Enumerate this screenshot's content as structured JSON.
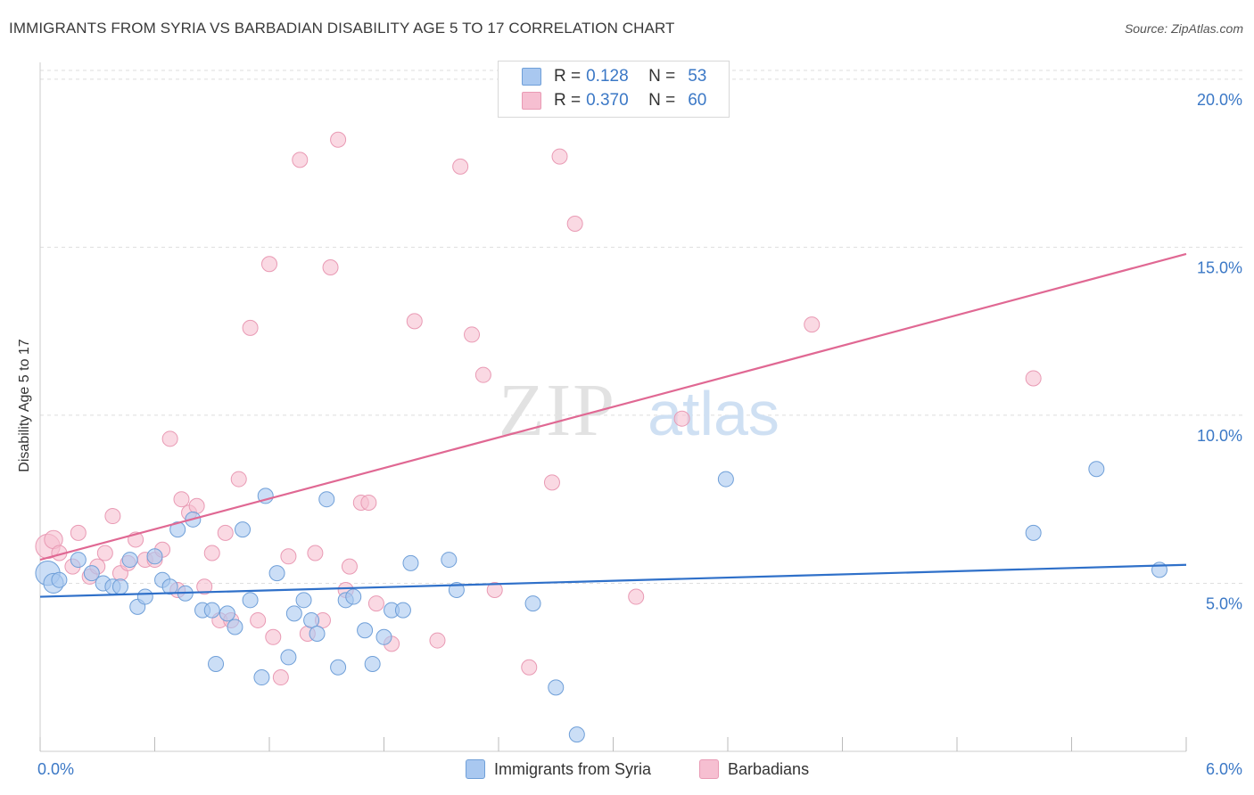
{
  "header": {
    "title": "IMMIGRANTS FROM SYRIA VS BARBADIAN DISABILITY AGE 5 TO 17 CORRELATION CHART",
    "source": "Source: ZipAtlas.com"
  },
  "legend": {
    "rows": [
      {
        "r_label": "R =",
        "r_value": "0.128",
        "n_label": "N =",
        "n_value": "53"
      },
      {
        "r_label": "R =",
        "r_value": "0.370",
        "n_label": "N =",
        "n_value": "60"
      }
    ],
    "bottom": [
      {
        "label": "Immigrants from Syria"
      },
      {
        "label": "Barbadians"
      }
    ]
  },
  "colors": {
    "blue_fill": "#a9c8f0",
    "blue_stroke": "#6f9fd8",
    "blue_line": "#2f70c9",
    "pink_fill": "#f6bfd1",
    "pink_stroke": "#e99ab4",
    "pink_line": "#e06893",
    "tick_label": "#3b78c6",
    "grid": "#dedede"
  },
  "watermark": {
    "zip": "ZIP",
    "atlas": "atlas"
  },
  "chart_data": {
    "type": "scatter",
    "title": "IMMIGRANTS FROM SYRIA VS BARBADIAN DISABILITY AGE 5 TO 17 CORRELATION CHART",
    "xlabel": "",
    "ylabel": "Disability Age 5 to 17",
    "xlim": [
      0,
      6.0
    ],
    "ylim": [
      0,
      20.5
    ],
    "x_tick_labels": [
      "0.0%",
      "6.0%"
    ],
    "y_ticks": [
      5,
      10,
      15,
      20
    ],
    "y_tick_labels": [
      "5.0%",
      "10.0%",
      "15.0%",
      "20.0%"
    ],
    "grid": true,
    "series": [
      {
        "name": "Immigrants from Syria",
        "trend": {
          "x0": 0.0,
          "y0": 4.6,
          "x1": 6.0,
          "y1": 5.55
        },
        "points": [
          [
            0.04,
            5.3,
            1.6
          ],
          [
            0.07,
            5.0,
            1.3
          ],
          [
            0.1,
            5.1,
            1
          ],
          [
            0.2,
            5.7,
            1
          ],
          [
            0.27,
            5.3,
            1
          ],
          [
            0.33,
            5.0,
            1
          ],
          [
            0.38,
            4.9,
            1
          ],
          [
            0.42,
            4.9,
            1
          ],
          [
            0.47,
            5.7,
            1
          ],
          [
            0.51,
            4.3,
            1
          ],
          [
            0.55,
            4.6,
            1
          ],
          [
            0.6,
            5.8,
            1
          ],
          [
            0.64,
            5.1,
            1
          ],
          [
            0.68,
            4.9,
            1
          ],
          [
            0.72,
            6.6,
            1
          ],
          [
            0.76,
            4.7,
            1
          ],
          [
            0.8,
            6.9,
            1
          ],
          [
            0.85,
            4.2,
            1
          ],
          [
            0.9,
            4.2,
            1
          ],
          [
            0.92,
            2.6,
            1
          ],
          [
            0.98,
            4.1,
            1
          ],
          [
            1.02,
            3.7,
            1
          ],
          [
            1.06,
            6.6,
            1
          ],
          [
            1.1,
            4.5,
            1
          ],
          [
            1.16,
            2.2,
            1
          ],
          [
            1.18,
            7.6,
            1
          ],
          [
            1.24,
            5.3,
            1
          ],
          [
            1.3,
            2.8,
            1
          ],
          [
            1.33,
            4.1,
            1
          ],
          [
            1.38,
            4.5,
            1
          ],
          [
            1.42,
            3.9,
            1
          ],
          [
            1.45,
            3.5,
            1
          ],
          [
            1.5,
            7.5,
            1
          ],
          [
            1.56,
            2.5,
            1
          ],
          [
            1.6,
            4.5,
            1
          ],
          [
            1.64,
            4.6,
            1
          ],
          [
            1.7,
            3.6,
            1
          ],
          [
            1.74,
            2.6,
            1
          ],
          [
            1.8,
            3.4,
            1
          ],
          [
            1.84,
            4.2,
            1
          ],
          [
            1.9,
            4.2,
            1
          ],
          [
            1.94,
            5.6,
            1
          ],
          [
            2.14,
            5.7,
            1
          ],
          [
            2.18,
            4.8,
            1
          ],
          [
            2.58,
            4.4,
            1
          ],
          [
            2.7,
            1.9,
            1
          ],
          [
            2.81,
            0.5,
            1
          ],
          [
            3.59,
            8.1,
            1
          ],
          [
            5.2,
            6.5,
            1
          ],
          [
            5.53,
            8.4,
            1
          ],
          [
            5.86,
            5.4,
            1
          ]
        ]
      },
      {
        "name": "Barbadians",
        "trend": {
          "x0": 0.0,
          "y0": 5.7,
          "x1": 6.0,
          "y1": 14.8
        },
        "points": [
          [
            0.04,
            6.1,
            1.6
          ],
          [
            0.07,
            6.3,
            1.2
          ],
          [
            0.1,
            5.9,
            1
          ],
          [
            0.17,
            5.5,
            1
          ],
          [
            0.2,
            6.5,
            1
          ],
          [
            0.26,
            5.2,
            1
          ],
          [
            0.3,
            5.5,
            1
          ],
          [
            0.34,
            5.9,
            1
          ],
          [
            0.38,
            7.0,
            1
          ],
          [
            0.42,
            5.3,
            1
          ],
          [
            0.46,
            5.6,
            1
          ],
          [
            0.5,
            6.3,
            1
          ],
          [
            0.55,
            5.7,
            1
          ],
          [
            0.6,
            5.7,
            1
          ],
          [
            0.64,
            6.0,
            1
          ],
          [
            0.68,
            9.3,
            1
          ],
          [
            0.72,
            4.8,
            1
          ],
          [
            0.74,
            7.5,
            1
          ],
          [
            0.78,
            7.1,
            1
          ],
          [
            0.82,
            7.3,
            1
          ],
          [
            0.86,
            4.9,
            1
          ],
          [
            0.9,
            5.9,
            1
          ],
          [
            0.94,
            3.9,
            1
          ],
          [
            0.97,
            6.5,
            1
          ],
          [
            1.0,
            3.9,
            1
          ],
          [
            1.04,
            8.1,
            1
          ],
          [
            1.1,
            12.6,
            1
          ],
          [
            1.14,
            3.9,
            1
          ],
          [
            1.2,
            14.5,
            1
          ],
          [
            1.22,
            3.4,
            1
          ],
          [
            1.26,
            2.2,
            1
          ],
          [
            1.3,
            5.8,
            1
          ],
          [
            1.36,
            17.6,
            1
          ],
          [
            1.4,
            3.5,
            1
          ],
          [
            1.44,
            5.9,
            1
          ],
          [
            1.48,
            3.9,
            1
          ],
          [
            1.52,
            14.4,
            1
          ],
          [
            1.56,
            18.2,
            1
          ],
          [
            1.6,
            4.8,
            1
          ],
          [
            1.62,
            5.5,
            1
          ],
          [
            1.68,
            7.4,
            1
          ],
          [
            1.72,
            7.4,
            1
          ],
          [
            1.76,
            4.4,
            1
          ],
          [
            1.84,
            3.2,
            1
          ],
          [
            1.96,
            12.8,
            1
          ],
          [
            2.08,
            3.3,
            1
          ],
          [
            2.2,
            17.4,
            1
          ],
          [
            2.26,
            12.4,
            1
          ],
          [
            2.32,
            11.2,
            1
          ],
          [
            2.38,
            4.8,
            1
          ],
          [
            2.56,
            2.5,
            1
          ],
          [
            2.68,
            8.0,
            1
          ],
          [
            2.72,
            17.7,
            1
          ],
          [
            2.8,
            15.7,
            1
          ],
          [
            3.12,
            4.6,
            1
          ],
          [
            3.36,
            9.9,
            1
          ],
          [
            4.04,
            12.7,
            1
          ],
          [
            5.2,
            11.1,
            1
          ]
        ]
      }
    ]
  }
}
